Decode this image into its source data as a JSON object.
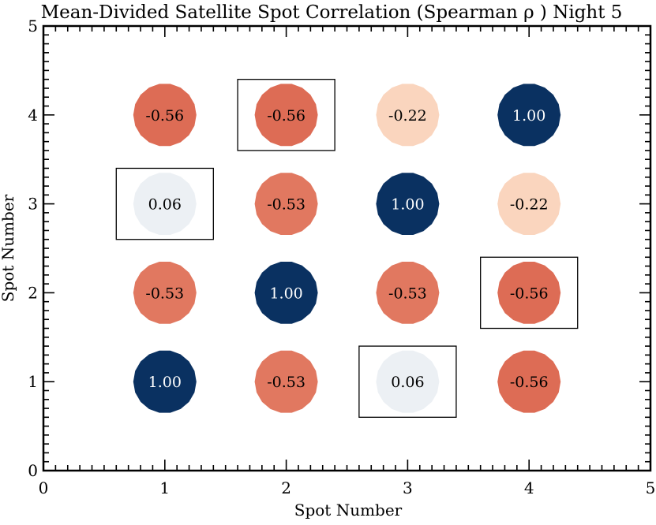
{
  "chart_data": {
    "type": "heatmap",
    "title": "Mean-Divided Satellite Spot Correlation (Spearman ρ ) Night 5",
    "xlabel": "Spot Number",
    "ylabel": "Spot Number",
    "xlim": [
      0,
      5
    ],
    "ylim": [
      0,
      5
    ],
    "x_ticks": [
      "0",
      "1",
      "2",
      "3",
      "4",
      "5"
    ],
    "y_ticks": [
      "0",
      "1",
      "2",
      "3",
      "4",
      "5"
    ],
    "grid": false,
    "colormap": {
      "negative": "#d6604d",
      "positive": "#053061",
      "neutral": "#f7f7f7"
    },
    "cells": [
      {
        "x": 1,
        "y": 1,
        "value": 1.0,
        "label": "1.00",
        "color": "#0a3161",
        "boxed": false
      },
      {
        "x": 2,
        "y": 1,
        "value": -0.53,
        "label": "-0.53",
        "color": "#e17860",
        "boxed": false
      },
      {
        "x": 3,
        "y": 1,
        "value": 0.06,
        "label": "0.06",
        "color": "#ecf0f4",
        "boxed": true
      },
      {
        "x": 4,
        "y": 1,
        "value": -0.56,
        "label": "-0.56",
        "color": "#dd6c55",
        "boxed": false
      },
      {
        "x": 1,
        "y": 2,
        "value": -0.53,
        "label": "-0.53",
        "color": "#e17860",
        "boxed": false
      },
      {
        "x": 2,
        "y": 2,
        "value": 1.0,
        "label": "1.00",
        "color": "#0a3161",
        "boxed": false
      },
      {
        "x": 3,
        "y": 2,
        "value": -0.53,
        "label": "-0.53",
        "color": "#e17860",
        "boxed": false
      },
      {
        "x": 4,
        "y": 2,
        "value": -0.56,
        "label": "-0.56",
        "color": "#dd6c55",
        "boxed": true
      },
      {
        "x": 1,
        "y": 3,
        "value": 0.06,
        "label": "0.06",
        "color": "#ecf0f4",
        "boxed": true
      },
      {
        "x": 2,
        "y": 3,
        "value": -0.53,
        "label": "-0.53",
        "color": "#e17860",
        "boxed": false
      },
      {
        "x": 3,
        "y": 3,
        "value": 1.0,
        "label": "1.00",
        "color": "#0a3161",
        "boxed": false
      },
      {
        "x": 4,
        "y": 3,
        "value": -0.22,
        "label": "-0.22",
        "color": "#fad5be",
        "boxed": false
      },
      {
        "x": 1,
        "y": 4,
        "value": -0.56,
        "label": "-0.56",
        "color": "#dd6c55",
        "boxed": false
      },
      {
        "x": 2,
        "y": 4,
        "value": -0.56,
        "label": "-0.56",
        "color": "#dd6c55",
        "boxed": true
      },
      {
        "x": 3,
        "y": 4,
        "value": -0.22,
        "label": "-0.22",
        "color": "#fad5be",
        "boxed": false
      },
      {
        "x": 4,
        "y": 4,
        "value": 1.0,
        "label": "1.00",
        "color": "#0a3161",
        "boxed": false
      }
    ]
  }
}
